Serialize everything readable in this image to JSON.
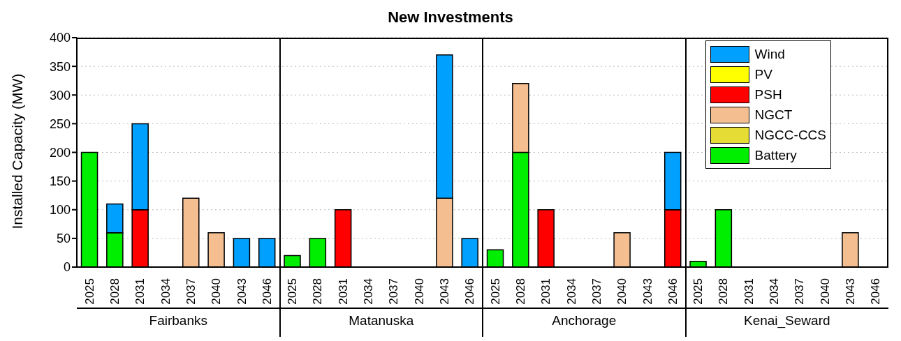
{
  "chart_data": {
    "type": "bar",
    "title": "New Investments",
    "ylabel": "Installed Capacity (MW)",
    "stacked": true,
    "categories": [
      "2025",
      "2028",
      "2031",
      "2034",
      "2037",
      "2040",
      "2043",
      "2046",
      "2025",
      "2028",
      "2031",
      "2034",
      "2037",
      "2040",
      "2043",
      "2046",
      "2025",
      "2028",
      "2031",
      "2034",
      "2037",
      "2040",
      "2043",
      "2046",
      "2025",
      "2028",
      "2031",
      "2034",
      "2037",
      "2040",
      "2043",
      "2046"
    ],
    "series": [
      {
        "name": "Battery",
        "color": "#00ee00",
        "values": [
          200,
          60,
          0,
          0,
          0,
          0,
          0,
          0,
          20,
          50,
          0,
          0,
          0,
          0,
          0,
          0,
          30,
          200,
          0,
          0,
          0,
          0,
          0,
          0,
          10,
          100,
          0,
          0,
          0,
          0,
          0,
          0
        ]
      },
      {
        "name": "NGCC-CCS",
        "color": "#e5dd35",
        "values": [
          0,
          0,
          0,
          0,
          0,
          0,
          0,
          0,
          0,
          0,
          0,
          0,
          0,
          0,
          0,
          0,
          0,
          0,
          0,
          0,
          0,
          0,
          0,
          0,
          0,
          0,
          0,
          0,
          0,
          0,
          0,
          0
        ]
      },
      {
        "name": "NGCT",
        "color": "#f5be91",
        "values": [
          0,
          0,
          0,
          0,
          120,
          60,
          0,
          0,
          0,
          0,
          0,
          0,
          0,
          0,
          120,
          0,
          0,
          120,
          0,
          0,
          0,
          60,
          0,
          0,
          0,
          0,
          0,
          0,
          0,
          0,
          60,
          0
        ]
      },
      {
        "name": "PSH",
        "color": "#ff0000",
        "values": [
          0,
          0,
          100,
          0,
          0,
          0,
          0,
          0,
          0,
          0,
          100,
          0,
          0,
          0,
          0,
          0,
          0,
          0,
          100,
          0,
          0,
          0,
          0,
          100,
          0,
          0,
          0,
          0,
          0,
          0,
          0,
          0
        ]
      },
      {
        "name": "PV",
        "color": "#ffff00",
        "values": [
          0,
          0,
          0,
          0,
          0,
          0,
          0,
          0,
          0,
          0,
          0,
          0,
          0,
          0,
          0,
          0,
          0,
          0,
          0,
          0,
          0,
          0,
          0,
          0,
          0,
          0,
          0,
          0,
          0,
          0,
          0,
          0
        ]
      },
      {
        "name": "Wind",
        "color": "#00a0ff",
        "values": [
          0,
          50,
          150,
          0,
          0,
          0,
          50,
          50,
          0,
          0,
          0,
          0,
          0,
          0,
          250,
          50,
          0,
          0,
          0,
          0,
          0,
          0,
          0,
          100,
          0,
          0,
          0,
          0,
          0,
          0,
          0,
          0
        ]
      }
    ],
    "annotations": [
      "Fairbanks",
      "Matanuska",
      "Anchorage",
      "Kenai_Seward"
    ],
    "ylim": [
      0,
      400
    ],
    "yticks": [
      0,
      50,
      100,
      150,
      200,
      250,
      300,
      350,
      400
    ],
    "grid": "y",
    "legend": "top right"
  }
}
